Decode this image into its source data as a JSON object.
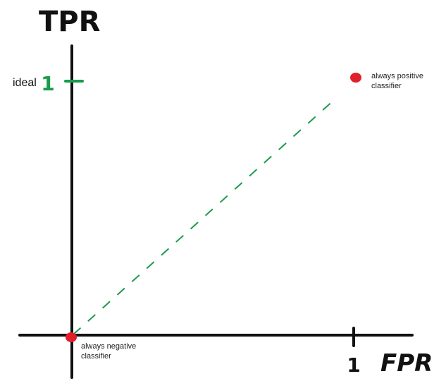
{
  "axes": {
    "y_label": "TPR",
    "x_label": "FPR",
    "y_tick": "1",
    "x_tick": "1",
    "y_tick_note": "ideal"
  },
  "points": [
    {
      "label_lines": [
        "always positive",
        "classifier"
      ]
    },
    {
      "label_lines": [
        "always negative",
        "classifier"
      ]
    }
  ]
}
